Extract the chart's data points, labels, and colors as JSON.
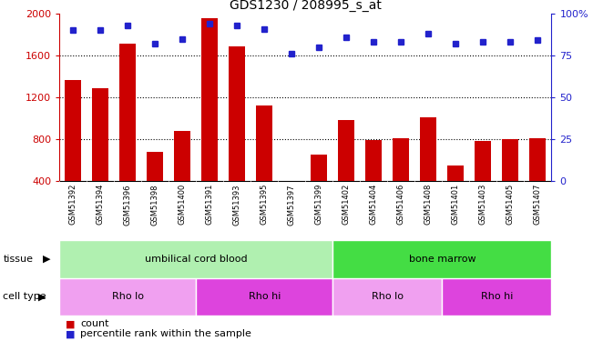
{
  "title": "GDS1230 / 208995_s_at",
  "samples": [
    "GSM51392",
    "GSM51394",
    "GSM51396",
    "GSM51398",
    "GSM51400",
    "GSM51391",
    "GSM51393",
    "GSM51395",
    "GSM51397",
    "GSM51399",
    "GSM51402",
    "GSM51404",
    "GSM51406",
    "GSM51408",
    "GSM51401",
    "GSM51403",
    "GSM51405",
    "GSM51407"
  ],
  "counts": [
    1360,
    1290,
    1710,
    680,
    880,
    1960,
    1690,
    1120,
    360,
    650,
    980,
    790,
    810,
    1010,
    550,
    780,
    800,
    810
  ],
  "percentiles": [
    90,
    90,
    93,
    82,
    85,
    94,
    93,
    91,
    76,
    80,
    86,
    83,
    83,
    88,
    82,
    83,
    83,
    84
  ],
  "bar_color": "#cc0000",
  "dot_color": "#2222cc",
  "ylim_left": [
    400,
    2000
  ],
  "ylim_right": [
    0,
    100
  ],
  "yticks_left": [
    400,
    800,
    1200,
    1600,
    2000
  ],
  "yticks_right": [
    0,
    25,
    50,
    75,
    100
  ],
  "grid_yticks": [
    800,
    1200,
    1600
  ],
  "tissue_groups": [
    {
      "label": "umbilical cord blood",
      "start": 0,
      "end": 10,
      "color": "#b0f0b0"
    },
    {
      "label": "bone marrow",
      "start": 10,
      "end": 18,
      "color": "#44dd44"
    }
  ],
  "cell_type_groups": [
    {
      "label": "Rho lo",
      "start": 0,
      "end": 5,
      "color": "#f0a0f0"
    },
    {
      "label": "Rho hi",
      "start": 5,
      "end": 10,
      "color": "#dd44dd"
    },
    {
      "label": "Rho lo",
      "start": 10,
      "end": 14,
      "color": "#f0a0f0"
    },
    {
      "label": "Rho hi",
      "start": 14,
      "end": 18,
      "color": "#dd44dd"
    }
  ],
  "xticklabel_bg": "#cccccc",
  "left_label_color": "#cc0000",
  "right_label_color": "#2222cc",
  "fig_width": 6.51,
  "fig_height": 3.75,
  "dpi": 100
}
